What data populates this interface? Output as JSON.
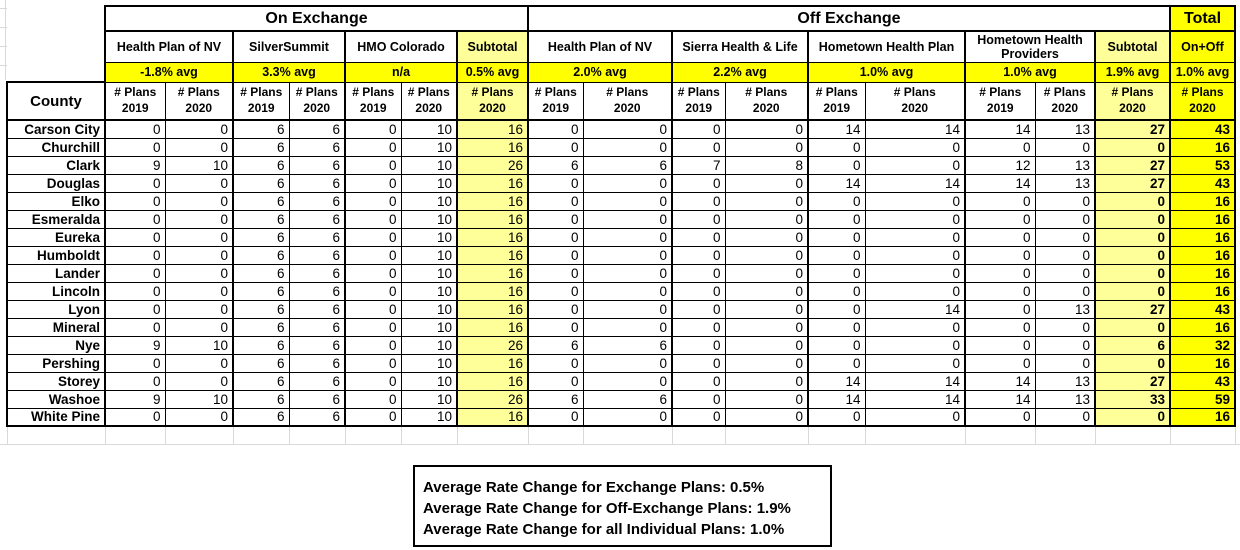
{
  "sheet": {
    "colors": {
      "bright_yellow": "#FFFF00",
      "pale_yellow": "#FFFF99"
    },
    "header": {
      "groups": [
        {
          "label": "On Exchange",
          "span": 7,
          "style": "plain"
        },
        {
          "label": "Off Exchange",
          "span": 9,
          "style": "plain"
        },
        {
          "label": "Total",
          "span": 1,
          "style": "bright"
        }
      ],
      "carriers": [
        {
          "label": "Health Plan of NV",
          "span": 2,
          "style": "plain"
        },
        {
          "label": "SilverSummit",
          "span": 2,
          "style": "plain"
        },
        {
          "label": "HMO Colorado",
          "span": 2,
          "style": "plain"
        },
        {
          "label": "Subtotal",
          "span": 1,
          "style": "pale"
        },
        {
          "label": "Health Plan of NV",
          "span": 2,
          "style": "plain"
        },
        {
          "label": "Sierra Health & Life",
          "span": 2,
          "style": "plain"
        },
        {
          "label": "Hometown Health Plan",
          "span": 2,
          "style": "plain"
        },
        {
          "label": "Hometown Health Providers",
          "span": 2,
          "style": "plain"
        },
        {
          "label": "Subtotal",
          "span": 1,
          "style": "pale"
        },
        {
          "label": "On+Off",
          "span": 1,
          "style": "bright"
        }
      ],
      "averages": [
        {
          "label": "-1.8% avg",
          "span": 2
        },
        {
          "label": "3.3% avg",
          "span": 2
        },
        {
          "label": "n/a",
          "span": 2
        },
        {
          "label": "0.5% avg",
          "span": 1
        },
        {
          "label": "2.0% avg",
          "span": 2
        },
        {
          "label": "2.2% avg",
          "span": 2
        },
        {
          "label": "1.0% avg",
          "span": 2
        },
        {
          "label": "1.0% avg",
          "span": 2
        },
        {
          "label": "1.9% avg",
          "span": 1
        },
        {
          "label": "1.0% avg",
          "span": 1
        }
      ],
      "corner_label": "County",
      "plan_cols": [
        {
          "line1": "# Plans",
          "line2": "2019"
        },
        {
          "line1": "# Plans",
          "line2": "2020"
        },
        {
          "line1": "# Plans",
          "line2": "2019"
        },
        {
          "line1": "# Plans",
          "line2": "2020"
        },
        {
          "line1": "# Plans",
          "line2": "2019"
        },
        {
          "line1": "# Plans",
          "line2": "2020"
        },
        {
          "line1": "# Plans",
          "line2": "2020"
        },
        {
          "line1": "# Plans",
          "line2": "2019"
        },
        {
          "line1": "# Plans",
          "line2": "2020"
        },
        {
          "line1": "# Plans",
          "line2": "2019"
        },
        {
          "line1": "# Plans",
          "line2": "2020"
        },
        {
          "line1": "# Plans",
          "line2": "2019"
        },
        {
          "line1": "# Plans",
          "line2": "2020"
        },
        {
          "line1": "# Plans",
          "line2": "2019"
        },
        {
          "line1": "# Plans",
          "line2": "2020"
        },
        {
          "line1": "# Plans",
          "line2": "2020"
        },
        {
          "line1": "# Plans",
          "line2": "2020"
        }
      ]
    },
    "rows": [
      {
        "county": "Carson City",
        "values": [
          0,
          0,
          6,
          6,
          0,
          10,
          16,
          0,
          0,
          0,
          0,
          14,
          14,
          14,
          13,
          27,
          43
        ]
      },
      {
        "county": "Churchill",
        "values": [
          0,
          0,
          6,
          6,
          0,
          10,
          16,
          0,
          0,
          0,
          0,
          0,
          0,
          0,
          0,
          0,
          16
        ]
      },
      {
        "county": "Clark",
        "values": [
          9,
          10,
          6,
          6,
          0,
          10,
          26,
          6,
          6,
          7,
          8,
          0,
          0,
          12,
          13,
          27,
          53
        ]
      },
      {
        "county": "Douglas",
        "values": [
          0,
          0,
          6,
          6,
          0,
          10,
          16,
          0,
          0,
          0,
          0,
          14,
          14,
          14,
          13,
          27,
          43
        ]
      },
      {
        "county": "Elko",
        "values": [
          0,
          0,
          6,
          6,
          0,
          10,
          16,
          0,
          0,
          0,
          0,
          0,
          0,
          0,
          0,
          0,
          16
        ]
      },
      {
        "county": "Esmeralda",
        "values": [
          0,
          0,
          6,
          6,
          0,
          10,
          16,
          0,
          0,
          0,
          0,
          0,
          0,
          0,
          0,
          0,
          16
        ]
      },
      {
        "county": "Eureka",
        "values": [
          0,
          0,
          6,
          6,
          0,
          10,
          16,
          0,
          0,
          0,
          0,
          0,
          0,
          0,
          0,
          0,
          16
        ]
      },
      {
        "county": "Humboldt",
        "values": [
          0,
          0,
          6,
          6,
          0,
          10,
          16,
          0,
          0,
          0,
          0,
          0,
          0,
          0,
          0,
          0,
          16
        ]
      },
      {
        "county": "Lander",
        "values": [
          0,
          0,
          6,
          6,
          0,
          10,
          16,
          0,
          0,
          0,
          0,
          0,
          0,
          0,
          0,
          0,
          16
        ]
      },
      {
        "county": "Lincoln",
        "values": [
          0,
          0,
          6,
          6,
          0,
          10,
          16,
          0,
          0,
          0,
          0,
          0,
          0,
          0,
          0,
          0,
          16
        ]
      },
      {
        "county": "Lyon",
        "values": [
          0,
          0,
          6,
          6,
          0,
          10,
          16,
          0,
          0,
          0,
          0,
          0,
          14,
          0,
          13,
          27,
          43
        ]
      },
      {
        "county": "Mineral",
        "values": [
          0,
          0,
          6,
          6,
          0,
          10,
          16,
          0,
          0,
          0,
          0,
          0,
          0,
          0,
          0,
          0,
          16
        ]
      },
      {
        "county": "Nye",
        "values": [
          9,
          10,
          6,
          6,
          0,
          10,
          26,
          6,
          6,
          0,
          0,
          0,
          0,
          0,
          0,
          6,
          32
        ]
      },
      {
        "county": "Pershing",
        "values": [
          0,
          0,
          6,
          6,
          0,
          10,
          16,
          0,
          0,
          0,
          0,
          0,
          0,
          0,
          0,
          0,
          16
        ]
      },
      {
        "county": "Storey",
        "values": [
          0,
          0,
          6,
          6,
          0,
          10,
          16,
          0,
          0,
          0,
          0,
          14,
          14,
          14,
          13,
          27,
          43
        ]
      },
      {
        "county": "Washoe",
        "values": [
          9,
          10,
          6,
          6,
          0,
          10,
          26,
          6,
          6,
          0,
          0,
          14,
          14,
          14,
          13,
          33,
          59
        ]
      },
      {
        "county": "White Pine",
        "values": [
          0,
          0,
          6,
          6,
          0,
          10,
          16,
          0,
          0,
          0,
          0,
          0,
          0,
          0,
          0,
          0,
          16
        ]
      }
    ]
  },
  "summary_box": {
    "lines": [
      "Average Rate Change for Exchange Plans: 0.5%",
      "Average Rate Change for Off-Exchange Plans: 1.9%",
      "Average Rate Change for all Individual Plans: 1.0%"
    ]
  }
}
